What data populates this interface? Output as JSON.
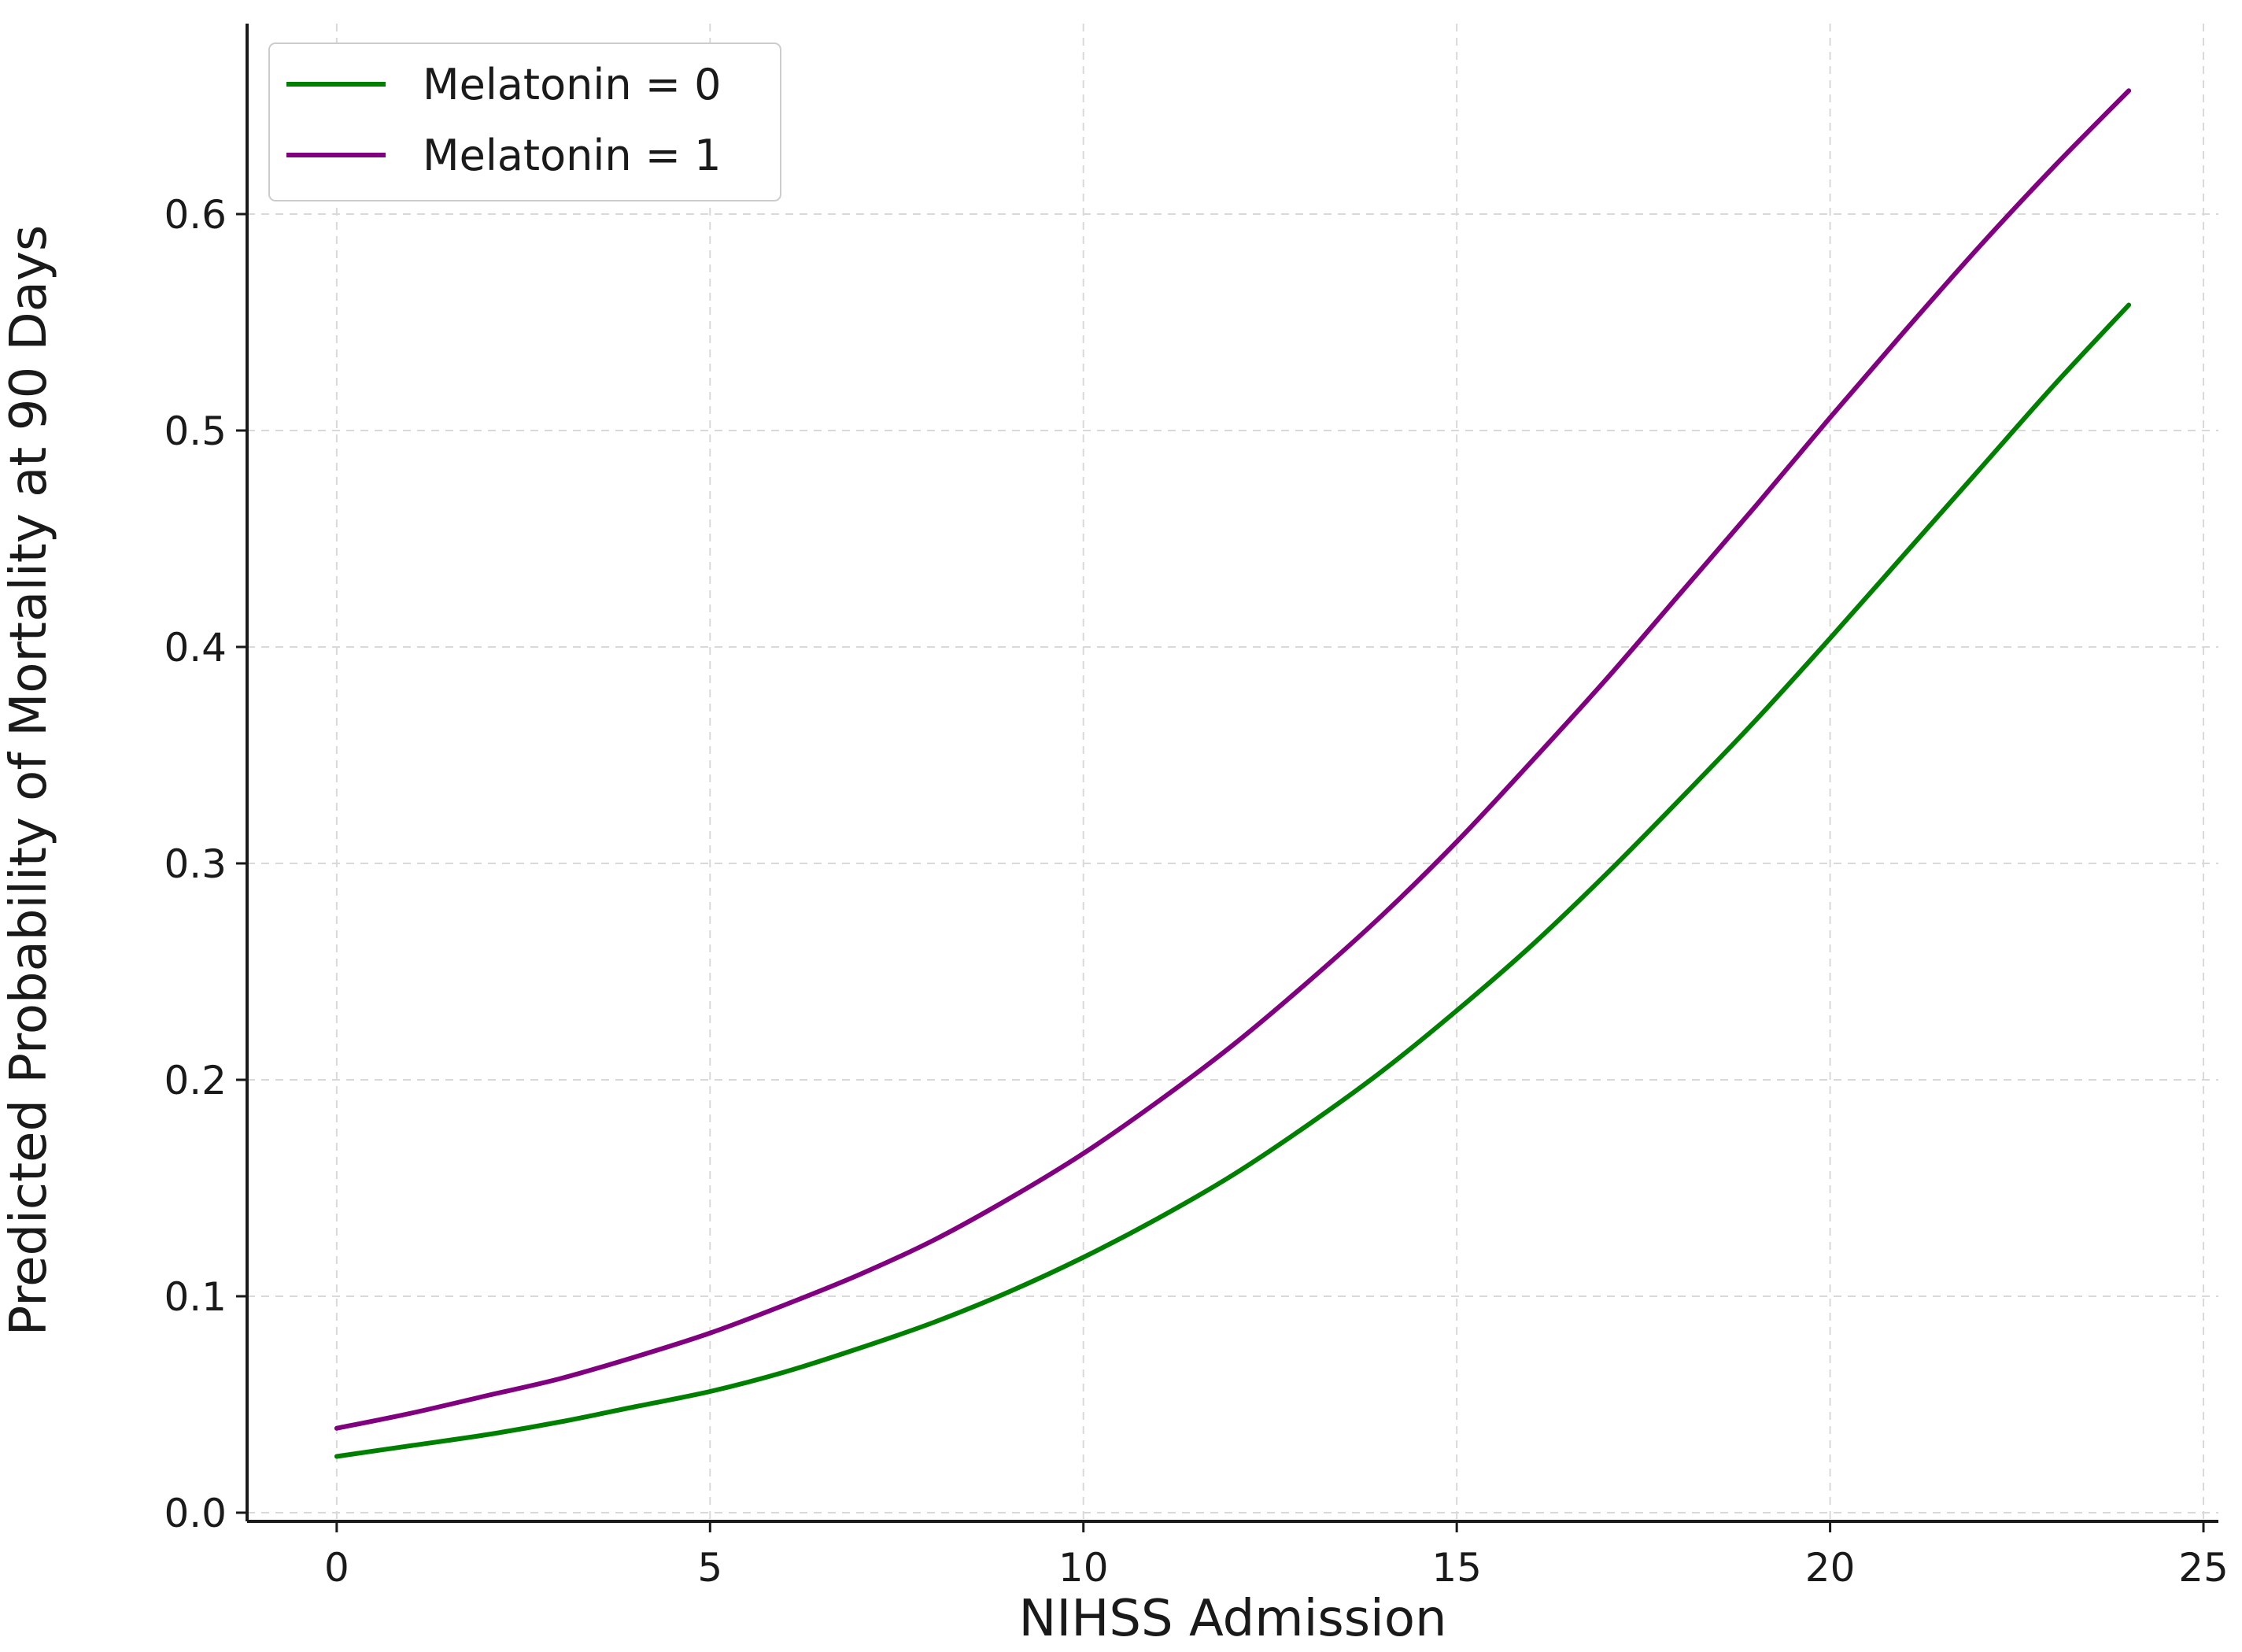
{
  "chart_data": {
    "type": "line",
    "title": "",
    "xlabel": "NIHSS Admission",
    "ylabel": "Predicted Probability of Mortality at 90 Days",
    "xlim": [
      -1.2,
      25.2
    ],
    "ylim": [
      -0.004,
      0.688
    ],
    "x_ticks": [
      0,
      5,
      10,
      15,
      20,
      25
    ],
    "y_ticks": [
      0.0,
      0.1,
      0.2,
      0.3,
      0.4,
      0.5,
      0.6
    ],
    "x_tick_labels": [
      "0",
      "5",
      "10",
      "15",
      "20",
      "25"
    ],
    "y_tick_labels": [
      "0.0",
      "0.1",
      "0.2",
      "0.3",
      "0.4",
      "0.5",
      "0.6"
    ],
    "grid": true,
    "legend_position": "top-left",
    "x": [
      0,
      1,
      2,
      3,
      4,
      5,
      6,
      7,
      8,
      9,
      10,
      11,
      12,
      13,
      14,
      15,
      16,
      17,
      18,
      19,
      20,
      21,
      22,
      23,
      24
    ],
    "series": [
      {
        "name": "Melatonin = 0",
        "color": "#008000",
        "values": [
          0.026,
          0.031,
          0.036,
          0.042,
          0.049,
          0.056,
          0.065,
          0.076,
          0.088,
          0.102,
          0.118,
          0.136,
          0.156,
          0.179,
          0.204,
          0.232,
          0.262,
          0.295,
          0.33,
          0.366,
          0.404,
          0.443,
          0.482,
          0.521,
          0.558
        ]
      },
      {
        "name": "Melatonin = 1",
        "color": "#800080",
        "values": [
          0.039,
          0.046,
          0.054,
          0.062,
          0.072,
          0.083,
          0.096,
          0.11,
          0.126,
          0.145,
          0.166,
          0.19,
          0.216,
          0.245,
          0.276,
          0.31,
          0.347,
          0.385,
          0.425,
          0.465,
          0.506,
          0.546,
          0.585,
          0.622,
          0.657
        ]
      }
    ]
  }
}
